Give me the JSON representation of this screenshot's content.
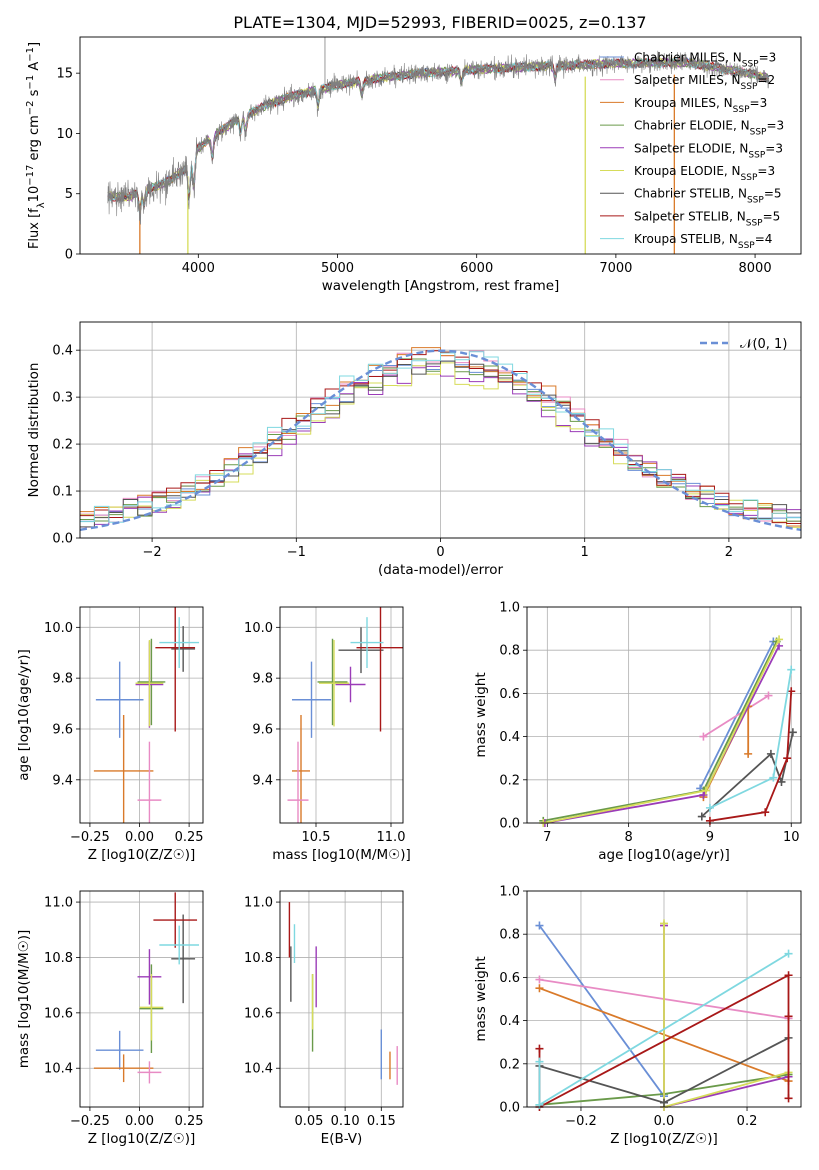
{
  "title": "PLATE=1304, MJD=52993, FIBERID=0025, z=0.137",
  "colors": {
    "Chabrier MILES": "#6a8fd6",
    "Salpeter MILES": "#e88bc4",
    "Kroupa MILES": "#d97a2a",
    "Chabrier ELODIE": "#6a9a4a",
    "Salpeter ELODIE": "#9b3cb8",
    "Kroupa ELODIE": "#d6dc5a",
    "Chabrier STELIB": "#555555",
    "Salpeter STELIB": "#a81818",
    "Kroupa STELIB": "#7fd8e0",
    "data": "#808080",
    "normal": "#6a8fd6"
  },
  "chart_data": [
    {
      "id": "spectrum",
      "type": "line",
      "xlabel": "wavelength [Angstrom, rest frame]",
      "ylabel": "Flux [f_λ10^-17 erg cm^-2 s^-1 A^-1]",
      "xlim": [
        3150,
        8330
      ],
      "ylim": [
        0,
        18
      ],
      "xticks": [
        4000,
        5000,
        6000,
        7000,
        8000
      ],
      "yticks": [
        0,
        5,
        10,
        15
      ],
      "legend_position": "upper-right",
      "legend": [
        {
          "label": "Chabrier MILES, N_SSP=3",
          "color": "#6a8fd6"
        },
        {
          "label": "Salpeter MILES, N_SSP=2",
          "color": "#e88bc4"
        },
        {
          "label": "Kroupa MILES, N_SSP=3",
          "color": "#d97a2a"
        },
        {
          "label": "Chabrier ELODIE, N_SSP=3",
          "color": "#6a9a4a"
        },
        {
          "label": "Salpeter ELODIE, N_SSP=3",
          "color": "#9b3cb8"
        },
        {
          "label": "Kroupa ELODIE, N_SSP=3",
          "color": "#d6dc5a"
        },
        {
          "label": "Chabrier STELIB, N_SSP=5",
          "color": "#555555"
        },
        {
          "label": "Salpeter STELIB, N_SSP=5",
          "color": "#a81818"
        },
        {
          "label": "Kroupa STELIB, N_SSP=4",
          "color": "#7fd8e0"
        }
      ],
      "continuum": [
        [
          3350,
          4.8
        ],
        [
          3500,
          4.7
        ],
        [
          3600,
          5.3
        ],
        [
          3700,
          5.6
        ],
        [
          3800,
          6.2
        ],
        [
          3900,
          7.0
        ],
        [
          4000,
          8.8
        ],
        [
          4100,
          9.7
        ],
        [
          4200,
          10.5
        ],
        [
          4300,
          11.3
        ],
        [
          4500,
          12.4
        ],
        [
          4700,
          13.2
        ],
        [
          5000,
          14.0
        ],
        [
          5300,
          14.6
        ],
        [
          5600,
          15.0
        ],
        [
          6000,
          15.3
        ],
        [
          6500,
          15.6
        ],
        [
          7000,
          15.8
        ],
        [
          7500,
          15.9
        ],
        [
          8000,
          14.9
        ],
        [
          8100,
          14.6
        ]
      ],
      "absorption_lines": [
        [
          3580,
          2.0
        ],
        [
          3610,
          1.5
        ],
        [
          3934,
          3.6
        ],
        [
          3968,
          3.2
        ],
        [
          4101,
          2.0
        ],
        [
          4304,
          1.5
        ],
        [
          4340,
          1.6
        ],
        [
          4861,
          1.5
        ],
        [
          5175,
          1.3
        ],
        [
          5890,
          1.2
        ],
        [
          6563,
          1.2
        ]
      ],
      "model_drops": [
        [
          3580,
          "#d97a2a"
        ],
        [
          3925,
          "#d6dc5a"
        ],
        [
          6780,
          "#d6dc5a"
        ],
        [
          7420,
          "#d97a2a"
        ]
      ],
      "data_spikes": [
        [
          4910,
          18
        ]
      ]
    },
    {
      "id": "residuals",
      "type": "line",
      "xlabel": "(data-model)/error",
      "ylabel": "Normed distribution",
      "xlim": [
        -2.5,
        2.5
      ],
      "ylim": [
        0,
        0.46
      ],
      "xticks": [
        -2,
        -1,
        0,
        1,
        2
      ],
      "yticks": [
        0.0,
        0.1,
        0.2,
        0.3,
        0.4
      ],
      "grid": true,
      "legend_position": "upper-right",
      "legend": [
        {
          "label": "𝒩(0, 1)",
          "color": "#6a8fd6",
          "style": "dashed"
        }
      ],
      "bin_edges": [
        -2.5,
        2.5,
        50
      ],
      "n_series": 9
    },
    {
      "id": "age_vs_Z",
      "type": "scatter",
      "xlabel": "Z [log10(Z/Z☉)]",
      "ylabel": "age  [log10(age/yr)]",
      "xlim": [
        -0.3,
        0.32
      ],
      "ylim": [
        9.23,
        10.08
      ],
      "xticks": [
        -0.25,
        0.0,
        0.25
      ],
      "yticks": [
        9.4,
        9.6,
        9.8,
        10.0
      ],
      "grid": true,
      "points": [
        {
          "x": -0.1,
          "y": 9.715,
          "xerr": 0.12,
          "yerr": 0.15,
          "color": "#6a8fd6"
        },
        {
          "x": -0.08,
          "y": 9.435,
          "xerr": 0.15,
          "yerr": 0.22,
          "color": "#d97a2a"
        },
        {
          "x": 0.05,
          "y": 9.32,
          "xerr": 0.06,
          "yerr": 0.23,
          "color": "#e88bc4"
        },
        {
          "x": 0.06,
          "y": 9.785,
          "xerr": 0.07,
          "yerr": 0.17,
          "color": "#6a9a4a"
        },
        {
          "x": 0.05,
          "y": 9.775,
          "xerr": 0.07,
          "yerr": 0.17,
          "color": "#9b3cb8"
        },
        {
          "x": 0.05,
          "y": 9.78,
          "xerr": 0.07,
          "yerr": 0.17,
          "color": "#d6dc5a"
        },
        {
          "x": 0.22,
          "y": 9.915,
          "xerr": 0.06,
          "yerr": 0.09,
          "color": "#555555"
        },
        {
          "x": 0.18,
          "y": 9.92,
          "xerr": 0.1,
          "yerr": 0.33,
          "color": "#a81818"
        },
        {
          "x": 0.2,
          "y": 9.94,
          "xerr": 0.1,
          "yerr": 0.1,
          "color": "#7fd8e0"
        }
      ]
    },
    {
      "id": "age_vs_mass",
      "type": "scatter",
      "xlabel": "mass [log10(M/M☉)]",
      "xlim": [
        10.26,
        11.08
      ],
      "ylim": [
        9.23,
        10.08
      ],
      "xticks": [
        10.5,
        11.0
      ],
      "yticks": [
        9.4,
        9.6,
        9.8,
        10.0
      ],
      "grid": true,
      "points": [
        {
          "x": 10.47,
          "y": 9.715,
          "xerr": 0.13,
          "yerr": 0.15,
          "color": "#6a8fd6"
        },
        {
          "x": 10.4,
          "y": 9.435,
          "xerr": 0.06,
          "yerr": 0.22,
          "color": "#d97a2a"
        },
        {
          "x": 10.38,
          "y": 9.32,
          "xerr": 0.07,
          "yerr": 0.23,
          "color": "#e88bc4"
        },
        {
          "x": 10.61,
          "y": 9.785,
          "xerr": 0.1,
          "yerr": 0.17,
          "color": "#6a9a4a"
        },
        {
          "x": 10.73,
          "y": 9.775,
          "xerr": 0.1,
          "yerr": 0.07,
          "color": "#9b3cb8"
        },
        {
          "x": 10.62,
          "y": 9.78,
          "xerr": 0.1,
          "yerr": 0.17,
          "color": "#d6dc5a"
        },
        {
          "x": 10.8,
          "y": 9.91,
          "xerr": 0.15,
          "yerr": 0.09,
          "color": "#555555"
        },
        {
          "x": 10.93,
          "y": 9.92,
          "xerr": 0.16,
          "yerr": 0.33,
          "color": "#a81818"
        },
        {
          "x": 10.84,
          "y": 9.94,
          "xerr": 0.11,
          "yerr": 0.1,
          "color": "#7fd8e0"
        }
      ]
    },
    {
      "id": "weight_vs_age",
      "type": "line",
      "xlabel": "age  [log10(age/yr)]",
      "ylabel": "mass weight",
      "xlim": [
        6.75,
        10.12
      ],
      "ylim": [
        0,
        1.0
      ],
      "xticks": [
        7,
        8,
        9,
        10
      ],
      "yticks": [
        0.0,
        0.2,
        0.4,
        0.6,
        0.8,
        1.0
      ],
      "grid": true,
      "series": [
        {
          "color": "#6a8fd6",
          "x": [
            8.88,
            9.78
          ],
          "y": [
            0.16,
            0.84
          ]
        },
        {
          "color": "#e88bc4",
          "x": [
            8.92,
            9.72
          ],
          "y": [
            0.4,
            0.59
          ]
        },
        {
          "color": "#d97a2a",
          "x": [
            8.92,
            9.47,
            9.47
          ],
          "y": [
            0.12,
            0.54,
            0.32
          ]
        },
        {
          "color": "#6a9a4a",
          "x": [
            6.95,
            8.92,
            9.82
          ],
          "y": [
            0.01,
            0.15,
            0.84
          ]
        },
        {
          "color": "#9b3cb8",
          "x": [
            6.97,
            8.92,
            9.85
          ],
          "y": [
            0.0,
            0.13,
            0.82
          ]
        },
        {
          "color": "#d6dc5a",
          "x": [
            6.95,
            8.95,
            9.85
          ],
          "y": [
            0.0,
            0.15,
            0.85
          ]
        },
        {
          "color": "#555555",
          "x": [
            8.9,
            9.75,
            9.88,
            10.02
          ],
          "y": [
            0.03,
            0.32,
            0.19,
            0.42
          ]
        },
        {
          "color": "#a81818",
          "x": [
            9.0,
            9.68,
            9.95,
            10.0
          ],
          "y": [
            0.01,
            0.05,
            0.3,
            0.61
          ]
        },
        {
          "color": "#7fd8e0",
          "x": [
            9.0,
            9.78,
            10.0
          ],
          "y": [
            0.07,
            0.21,
            0.71
          ]
        }
      ]
    },
    {
      "id": "mass_vs_Z",
      "type": "scatter",
      "xlabel": "Z [log10(Z/Z☉)]",
      "ylabel": "mass [log10(M/M☉)]",
      "xlim": [
        -0.3,
        0.32
      ],
      "ylim": [
        10.26,
        11.04
      ],
      "xticks": [
        -0.25,
        0.0,
        0.25
      ],
      "yticks": [
        10.4,
        10.6,
        10.8,
        11.0
      ],
      "grid": true,
      "points": [
        {
          "x": -0.1,
          "y": 10.465,
          "xerr": 0.12,
          "yerr": 0.07,
          "color": "#6a8fd6"
        },
        {
          "x": -0.08,
          "y": 10.4,
          "xerr": 0.15,
          "yerr": 0.05,
          "color": "#d97a2a"
        },
        {
          "x": 0.05,
          "y": 10.385,
          "xerr": 0.06,
          "yerr": 0.04,
          "color": "#e88bc4"
        },
        {
          "x": 0.06,
          "y": 10.615,
          "xerr": 0.06,
          "yerr": 0.16,
          "color": "#6a9a4a"
        },
        {
          "x": 0.05,
          "y": 10.73,
          "xerr": 0.06,
          "yerr": 0.1,
          "color": "#9b3cb8"
        },
        {
          "x": 0.06,
          "y": 10.62,
          "xerr": 0.06,
          "yerr": 0.12,
          "color": "#d6dc5a"
        },
        {
          "x": 0.22,
          "y": 10.795,
          "xerr": 0.06,
          "yerr": 0.16,
          "color": "#555555"
        },
        {
          "x": 0.18,
          "y": 10.935,
          "xerr": 0.11,
          "yerr": 0.1,
          "color": "#a81818"
        },
        {
          "x": 0.2,
          "y": 10.845,
          "xerr": 0.1,
          "yerr": 0.07,
          "color": "#7fd8e0"
        }
      ]
    },
    {
      "id": "mass_vs_EBV",
      "type": "scatter",
      "xlabel": "E(B-V)",
      "xlim": [
        0.01,
        0.18
      ],
      "ylim": [
        10.26,
        11.04
      ],
      "xticks": [
        0.05,
        0.1,
        0.15
      ],
      "yticks": [
        10.4,
        10.6,
        10.8,
        11.0
      ],
      "grid": true,
      "points": [
        {
          "x": 0.023,
          "y": 10.9,
          "yerr": 0.1,
          "color": "#a81818"
        },
        {
          "x": 0.025,
          "y": 10.74,
          "yerr": 0.1,
          "color": "#555555"
        },
        {
          "x": 0.03,
          "y": 10.85,
          "yerr": 0.07,
          "color": "#7fd8e0"
        },
        {
          "x": 0.055,
          "y": 10.6,
          "yerr": 0.14,
          "color": "#6a9a4a"
        },
        {
          "x": 0.055,
          "y": 10.64,
          "yerr": 0.1,
          "color": "#d6dc5a"
        },
        {
          "x": 0.06,
          "y": 10.73,
          "yerr": 0.11,
          "color": "#9b3cb8"
        },
        {
          "x": 0.15,
          "y": 10.45,
          "yerr": 0.09,
          "color": "#6a8fd6"
        },
        {
          "x": 0.162,
          "y": 10.41,
          "yerr": 0.05,
          "color": "#d97a2a"
        },
        {
          "x": 0.172,
          "y": 10.41,
          "yerr": 0.07,
          "color": "#e88bc4"
        }
      ]
    },
    {
      "id": "weight_vs_Z",
      "type": "line",
      "xlabel": "Z [log10(Z/Z☉)]",
      "ylabel": "mass weight",
      "xlim": [
        -0.33,
        0.33
      ],
      "ylim": [
        0,
        1.0
      ],
      "xticks": [
        -0.2,
        0.0,
        0.2
      ],
      "yticks": [
        0.0,
        0.2,
        0.4,
        0.6,
        0.8,
        1.0
      ],
      "grid": true,
      "series": [
        {
          "color": "#6a8fd6",
          "x": [
            -0.3,
            0.0
          ],
          "y": [
            0.84,
            0.05
          ]
        },
        {
          "color": "#e88bc4",
          "x": [
            -0.3,
            0.3
          ],
          "y": [
            0.59,
            0.41
          ]
        },
        {
          "color": "#d97a2a",
          "x": [
            -0.3,
            0.3
          ],
          "y": [
            0.55,
            0.12
          ]
        },
        {
          "color": "#6a9a4a",
          "x": [
            -0.3,
            0.0,
            0.3
          ],
          "y": [
            0.01,
            0.06,
            0.15
          ]
        },
        {
          "color": "#9b3cb8",
          "x": [
            0.0,
            0.0,
            0.3
          ],
          "y": [
            0.84,
            0.0,
            0.14
          ]
        },
        {
          "color": "#d6dc5a",
          "x": [
            0.0,
            0.0,
            0.3
          ],
          "y": [
            0.85,
            0.0,
            0.16
          ]
        },
        {
          "color": "#555555",
          "x": [
            -0.3,
            0.0,
            0.3
          ],
          "y": [
            0.19,
            0.02,
            0.32
          ]
        },
        {
          "color": "#a81818",
          "x": [
            -0.3,
            -0.3,
            0.3,
            0.3,
            0.3
          ],
          "y": [
            0.27,
            0.0,
            0.61,
            0.42,
            0.04
          ]
        },
        {
          "color": "#7fd8e0",
          "x": [
            -0.3,
            -0.3,
            0.3
          ],
          "y": [
            0.21,
            0.01,
            0.71
          ]
        }
      ]
    }
  ]
}
